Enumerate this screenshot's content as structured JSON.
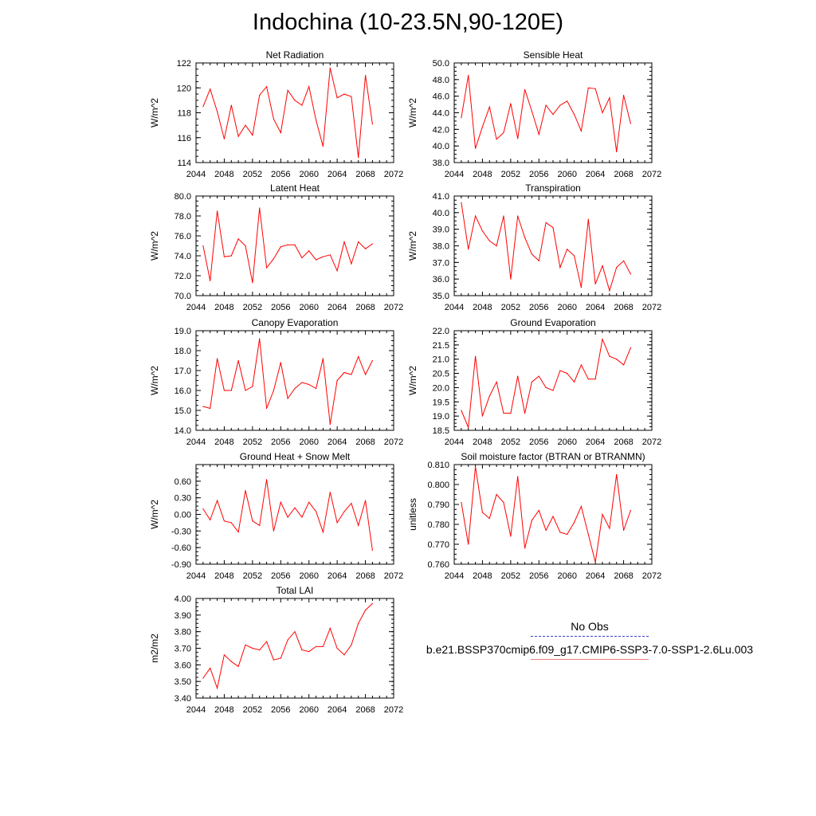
{
  "title": "Indochina (10-23.5N,90-120E)",
  "colors": {
    "series": "#ff0000",
    "axis": "#000000",
    "obs": "#3f3fbf",
    "run_legend": "#f08080"
  },
  "legend": {
    "obs_label": "No Obs",
    "run_label": "b.e21.BSSP370cmip6.f09_g17.CMIP6-SSP3-7.0-SSP1-2.6Lu.003"
  },
  "chart_data": [
    {
      "type": "line",
      "title": "Net Radiation",
      "ylabel": "W/m^2",
      "xlim": [
        2044,
        2072
      ],
      "xticks": [
        2044,
        2048,
        2052,
        2056,
        2060,
        2064,
        2068,
        2072
      ],
      "ylim": [
        114,
        122
      ],
      "yticks": [
        "114",
        "116",
        "118",
        "120",
        "122"
      ],
      "x": [
        2045,
        2046,
        2047,
        2048,
        2049,
        2050,
        2051,
        2052,
        2053,
        2054,
        2055,
        2056,
        2057,
        2058,
        2059,
        2060,
        2061,
        2062,
        2063,
        2064,
        2065,
        2066,
        2067,
        2068,
        2069
      ],
      "values": [
        118.5,
        119.9,
        118.1,
        115.9,
        118.6,
        116.1,
        117.0,
        116.2,
        119.4,
        120.1,
        117.5,
        116.4,
        119.8,
        119.0,
        118.6,
        120.1,
        117.4,
        115.3,
        121.6,
        119.2,
        119.5,
        119.3,
        114.4,
        121.0,
        117.1
      ]
    },
    {
      "type": "line",
      "title": "Sensible Heat",
      "ylabel": "W/m^2",
      "xlim": [
        2044,
        2072
      ],
      "xticks": [
        2044,
        2048,
        2052,
        2056,
        2060,
        2064,
        2068,
        2072
      ],
      "ylim": [
        38,
        50
      ],
      "yticks": [
        "38.0",
        "40.0",
        "42.0",
        "44.0",
        "46.0",
        "48.0",
        "50.0"
      ],
      "x": [
        2045,
        2046,
        2047,
        2048,
        2049,
        2050,
        2051,
        2052,
        2053,
        2054,
        2055,
        2056,
        2057,
        2058,
        2059,
        2060,
        2061,
        2062,
        2063,
        2064,
        2065,
        2066,
        2067,
        2068,
        2069
      ],
      "values": [
        43.4,
        48.5,
        39.7,
        42.3,
        44.7,
        40.8,
        41.6,
        45.1,
        40.9,
        46.8,
        44.2,
        41.4,
        44.9,
        43.8,
        44.9,
        45.4,
        43.8,
        41.8,
        47.0,
        46.9,
        44.0,
        45.8,
        39.3,
        46.1,
        42.7
      ]
    },
    {
      "type": "line",
      "title": "Latent Heat",
      "ylabel": "W/m^2",
      "xlim": [
        2044,
        2072
      ],
      "xticks": [
        2044,
        2048,
        2052,
        2056,
        2060,
        2064,
        2068,
        2072
      ],
      "ylim": [
        70,
        80
      ],
      "yticks": [
        "70.0",
        "72.0",
        "74.0",
        "76.0",
        "78.0",
        "80.0"
      ],
      "x": [
        2045,
        2046,
        2047,
        2048,
        2049,
        2050,
        2051,
        2052,
        2053,
        2054,
        2055,
        2056,
        2057,
        2058,
        2059,
        2060,
        2061,
        2062,
        2063,
        2064,
        2065,
        2066,
        2067,
        2068,
        2069
      ],
      "values": [
        75.0,
        71.5,
        78.5,
        73.9,
        74.0,
        75.7,
        75.0,
        71.3,
        78.8,
        72.8,
        73.7,
        74.9,
        75.1,
        75.1,
        73.8,
        74.5,
        73.6,
        73.9,
        74.1,
        72.5,
        75.4,
        73.2,
        75.4,
        74.7,
        75.2
      ]
    },
    {
      "type": "line",
      "title": "Transpiration",
      "ylabel": "W/m^2",
      "xlim": [
        2044,
        2072
      ],
      "xticks": [
        2044,
        2048,
        2052,
        2056,
        2060,
        2064,
        2068,
        2072
      ],
      "ylim": [
        35,
        41
      ],
      "yticks": [
        "35.0",
        "36.0",
        "37.0",
        "38.0",
        "39.0",
        "40.0",
        "41.0"
      ],
      "x": [
        2045,
        2046,
        2047,
        2048,
        2049,
        2050,
        2051,
        2052,
        2053,
        2054,
        2055,
        2056,
        2057,
        2058,
        2059,
        2060,
        2061,
        2062,
        2063,
        2064,
        2065,
        2066,
        2067,
        2068,
        2069
      ],
      "values": [
        40.6,
        37.8,
        39.8,
        38.9,
        38.3,
        38.0,
        39.8,
        36.0,
        39.8,
        38.5,
        37.5,
        37.1,
        39.4,
        39.1,
        36.7,
        37.8,
        37.4,
        35.5,
        39.6,
        35.7,
        36.8,
        35.3,
        36.7,
        37.1,
        36.3
      ]
    },
    {
      "type": "line",
      "title": "Canopy Evaporation",
      "ylabel": "W/m^2",
      "xlim": [
        2044,
        2072
      ],
      "xticks": [
        2044,
        2048,
        2052,
        2056,
        2060,
        2064,
        2068,
        2072
      ],
      "ylim": [
        14,
        19
      ],
      "yticks": [
        "14.0",
        "15.0",
        "16.0",
        "17.0",
        "18.0",
        "19.0"
      ],
      "x": [
        2045,
        2046,
        2047,
        2048,
        2049,
        2050,
        2051,
        2052,
        2053,
        2054,
        2055,
        2056,
        2057,
        2058,
        2059,
        2060,
        2061,
        2062,
        2063,
        2064,
        2065,
        2066,
        2067,
        2068,
        2069
      ],
      "values": [
        15.2,
        15.1,
        17.6,
        16.0,
        16.0,
        17.5,
        16.0,
        16.2,
        18.6,
        15.1,
        16.0,
        17.4,
        15.6,
        16.1,
        16.4,
        16.3,
        16.1,
        17.6,
        14.3,
        16.5,
        16.9,
        16.8,
        17.7,
        16.8,
        17.5
      ]
    },
    {
      "type": "line",
      "title": "Ground Evaporation",
      "ylabel": "W/m^2",
      "xlim": [
        2044,
        2072
      ],
      "xticks": [
        2044,
        2048,
        2052,
        2056,
        2060,
        2064,
        2068,
        2072
      ],
      "ylim": [
        18.5,
        22
      ],
      "yticks": [
        "18.5",
        "19.0",
        "19.5",
        "20.0",
        "20.5",
        "21.0",
        "21.5",
        "22.0"
      ],
      "x": [
        2045,
        2046,
        2047,
        2048,
        2049,
        2050,
        2051,
        2052,
        2053,
        2054,
        2055,
        2056,
        2057,
        2058,
        2059,
        2060,
        2061,
        2062,
        2063,
        2064,
        2065,
        2066,
        2067,
        2068,
        2069
      ],
      "values": [
        19.2,
        18.6,
        21.1,
        19.0,
        19.7,
        20.2,
        19.1,
        19.1,
        20.4,
        19.1,
        20.2,
        20.4,
        20.0,
        19.9,
        20.6,
        20.5,
        20.2,
        20.8,
        20.3,
        20.3,
        21.7,
        21.1,
        21.0,
        20.8,
        21.4
      ]
    },
    {
      "type": "line",
      "title": "Ground Heat + Snow Melt",
      "ylabel": "W/m^2",
      "xlim": [
        2044,
        2072
      ],
      "xticks": [
        2044,
        2048,
        2052,
        2056,
        2060,
        2064,
        2068,
        2072
      ],
      "ylim": [
        -0.9,
        0.9
      ],
      "yticks": [
        "-0.90",
        "-0.60",
        "-0.30",
        "0.00",
        "0.30",
        "0.60"
      ],
      "x": [
        2045,
        2046,
        2047,
        2048,
        2049,
        2050,
        2051,
        2052,
        2053,
        2054,
        2055,
        2056,
        2057,
        2058,
        2059,
        2060,
        2061,
        2062,
        2063,
        2064,
        2065,
        2066,
        2067,
        2068,
        2069
      ],
      "values": [
        0.1,
        -0.1,
        0.25,
        -0.12,
        -0.15,
        -0.32,
        0.43,
        -0.12,
        -0.2,
        0.63,
        -0.3,
        0.22,
        -0.05,
        0.12,
        -0.05,
        0.22,
        0.05,
        -0.32,
        0.4,
        -0.15,
        0.05,
        0.2,
        -0.2,
        0.25,
        -0.65
      ]
    },
    {
      "type": "line",
      "title": "Soil moisture factor (BTRAN or BTRANMN)",
      "ylabel": "unitless",
      "xlim": [
        2044,
        2072
      ],
      "xticks": [
        2044,
        2048,
        2052,
        2056,
        2060,
        2064,
        2068,
        2072
      ],
      "ylim": [
        0.76,
        0.81
      ],
      "yticks": [
        "0.760",
        "0.770",
        "0.780",
        "0.790",
        "0.800",
        "0.810"
      ],
      "x": [
        2045,
        2046,
        2047,
        2048,
        2049,
        2050,
        2051,
        2052,
        2053,
        2054,
        2055,
        2056,
        2057,
        2058,
        2059,
        2060,
        2061,
        2062,
        2063,
        2064,
        2065,
        2066,
        2067,
        2068,
        2069
      ],
      "values": [
        0.791,
        0.77,
        0.809,
        0.786,
        0.783,
        0.795,
        0.791,
        0.774,
        0.804,
        0.768,
        0.782,
        0.787,
        0.777,
        0.784,
        0.776,
        0.775,
        0.781,
        0.789,
        0.775,
        0.761,
        0.785,
        0.778,
        0.805,
        0.777,
        0.787
      ]
    },
    {
      "type": "line",
      "title": "Total LAI",
      "ylabel": "m2/m2",
      "xlim": [
        2044,
        2072
      ],
      "xticks": [
        2044,
        2048,
        2052,
        2056,
        2060,
        2064,
        2068,
        2072
      ],
      "ylim": [
        3.4,
        4.0
      ],
      "yticks": [
        "3.40",
        "3.50",
        "3.60",
        "3.70",
        "3.80",
        "3.90",
        "4.00"
      ],
      "x": [
        2045,
        2046,
        2047,
        2048,
        2049,
        2050,
        2051,
        2052,
        2053,
        2054,
        2055,
        2056,
        2057,
        2058,
        2059,
        2060,
        2061,
        2062,
        2063,
        2064,
        2065,
        2066,
        2067,
        2068,
        2069
      ],
      "values": [
        3.52,
        3.58,
        3.46,
        3.66,
        3.62,
        3.59,
        3.72,
        3.7,
        3.69,
        3.74,
        3.63,
        3.64,
        3.75,
        3.8,
        3.69,
        3.68,
        3.71,
        3.71,
        3.82,
        3.7,
        3.66,
        3.72,
        3.85,
        3.93,
        3.97
      ]
    }
  ]
}
